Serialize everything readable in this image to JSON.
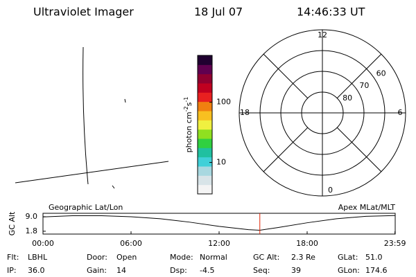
{
  "header": {
    "title": "Ultraviolet Imager",
    "date": "18 Jul 07",
    "time": "14:46:33 UT"
  },
  "colorbar": {
    "label_parts": [
      "photon cm",
      "-2",
      "s",
      "-1"
    ],
    "log": true,
    "ylim": [
      3,
      600
    ],
    "yticks": [
      10,
      100
    ],
    "colors": [
      "#f4f4f4",
      "#d8e4e8",
      "#a8d8e0",
      "#40d0d8",
      "#20c0a0",
      "#30d040",
      "#90e020",
      "#f0f040",
      "#f8c020",
      "#f08010",
      "#e82020",
      "#c00020",
      "#900030",
      "#600050",
      "#200030"
    ]
  },
  "polar": {
    "rlim": [
      90,
      50
    ],
    "rticks": [
      80,
      70,
      60
    ],
    "mlt_ticks": [
      12,
      6,
      0,
      18
    ]
  },
  "altitude": {
    "ylabel": "GC Alt",
    "left_title": "Geographic Lat/Lon",
    "right_title": "Apex MLat/MLT",
    "xlim": [
      0,
      24
    ],
    "ylim": [
      0.4,
      10.7
    ],
    "xticks": [
      {
        "value": 0,
        "label": "00:00"
      },
      {
        "value": 6,
        "label": "06:00"
      },
      {
        "value": 12,
        "label": "12:00"
      },
      {
        "value": 18,
        "label": "18:00"
      },
      {
        "value": 23.983,
        "label": "23:59"
      }
    ],
    "yticks": [
      1.8,
      {
        "value": 9,
        "label": "9.0"
      }
    ],
    "x": [
      0,
      2,
      4,
      6,
      8,
      10,
      12,
      14,
      14.776,
      16,
      18,
      20,
      22,
      23.983
    ],
    "values": [
      8.9,
      9.5,
      9.5,
      9.0,
      8.0,
      6.3,
      4.2,
      2.6,
      2.3,
      3.6,
      6.0,
      8.0,
      9.2,
      9.6
    ],
    "marker_x": 14.776,
    "color": "#000000",
    "marker_color": "#e02000"
  },
  "footer": {
    "rows": [
      [
        {
          "label": "Flt:",
          "value": "LBHL"
        },
        {
          "label": "Door:",
          "value": "Open"
        },
        {
          "label": "Mode:",
          "value": "Normal"
        },
        {
          "label": "GC Alt:",
          "value": "2.3 Re"
        },
        {
          "label": "GLat:",
          "value": "51.0"
        }
      ],
      [
        {
          "label": "IP:",
          "value": "36.0"
        },
        {
          "label": "Gain:",
          "value": "14"
        },
        {
          "label": "Dsp:",
          "value": "-4.5"
        },
        {
          "label": "Seq:",
          "value": "39"
        },
        {
          "label": "GLon:",
          "value": "174.6"
        }
      ]
    ]
  }
}
